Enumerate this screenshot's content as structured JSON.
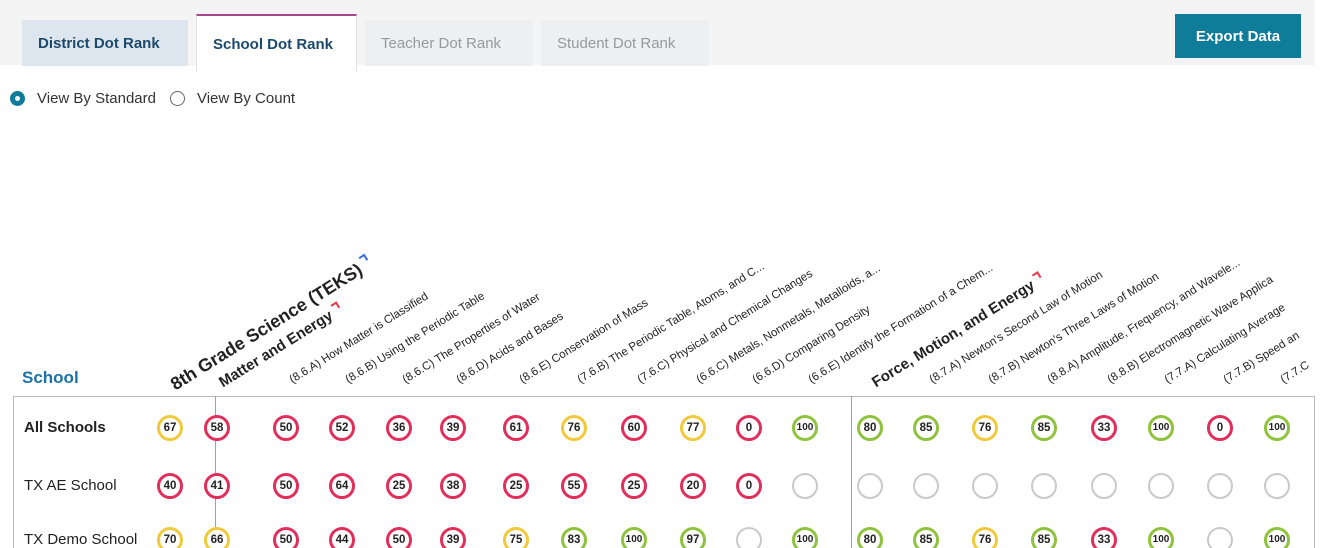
{
  "tabs": {
    "district": "District Dot Rank",
    "school": "School Dot Rank",
    "teacher": "Teacher Dot Rank",
    "student": "Student Dot Rank"
  },
  "export_label": "Export Data",
  "view_options": {
    "standard": "View By Standard",
    "count": "View By Count",
    "selected": "standard"
  },
  "table": {
    "row_header": "School",
    "top_label": "8th Grade Science (TEKS)",
    "columns": [
      {
        "label": "8th Grade Science (TEKS)",
        "kind": "top",
        "flag": "blue"
      },
      {
        "label": "Matter and Energy",
        "kind": "group",
        "flag": "red"
      },
      {
        "label": "(8.6.A) How Matter is Classified",
        "kind": "standard"
      },
      {
        "label": "(8.6.B) Using the Periodic Table",
        "kind": "standard"
      },
      {
        "label": "(8.6.C) The Properties of Water",
        "kind": "standard"
      },
      {
        "label": "(8.6.D) Acids and Bases",
        "kind": "standard"
      },
      {
        "label": "(8.6.E) Conservation of Mass",
        "kind": "standard"
      },
      {
        "label": "(7.6.B) The Periodic Table, Atoms, and C...",
        "kind": "standard"
      },
      {
        "label": "(7.6.C) Physical and Chemical Changes",
        "kind": "standard"
      },
      {
        "label": "(6.6.C) Metals, Nonmetals, Metalloids, a...",
        "kind": "standard"
      },
      {
        "label": "(6.6.D) Comparing Density",
        "kind": "standard"
      },
      {
        "label": "(6.6.E) Identify the Formation of a Chem...",
        "kind": "standard"
      },
      {
        "label": "Force, Motion, and Energy",
        "kind": "group",
        "flag": "red"
      },
      {
        "label": "(8.7.A) Newton's Second Law of Motion",
        "kind": "standard"
      },
      {
        "label": "(8.7.B) Newton's Three Laws of Motion",
        "kind": "standard"
      },
      {
        "label": "(8.8.A) Amplitude, Frequency, and Wavele...",
        "kind": "standard"
      },
      {
        "label": "(8.8.B) Electromagnetic Wave Applica",
        "kind": "standard"
      },
      {
        "label": "(7.7.A) Calculating Average",
        "kind": "standard"
      },
      {
        "label": "(7.7.B) Speed an",
        "kind": "standard"
      },
      {
        "label": "(7.7.C",
        "kind": "standard"
      }
    ],
    "rows": [
      {
        "name": "All Schools",
        "bold": true,
        "values": [
          "67",
          "58",
          "50",
          "52",
          "36",
          "39",
          "61",
          "76",
          "60",
          "77",
          "0",
          "100",
          "80",
          "85",
          "76",
          "85",
          "33",
          "100",
          "0",
          "100"
        ],
        "colors": [
          "yellow",
          "red",
          "red",
          "red",
          "red",
          "red",
          "red",
          "yellow",
          "red",
          "yellow",
          "red",
          "green",
          "green",
          "green",
          "yellow",
          "green",
          "red",
          "green",
          "red",
          "green"
        ]
      },
      {
        "name": "TX AE School",
        "bold": false,
        "values": [
          "40",
          "41",
          "50",
          "64",
          "25",
          "38",
          "25",
          "55",
          "25",
          "20",
          "0",
          "",
          "",
          "",
          "",
          "",
          "",
          "",
          "",
          ""
        ],
        "colors": [
          "red",
          "red",
          "red",
          "red",
          "red",
          "red",
          "red",
          "red",
          "red",
          "red",
          "red",
          "empty",
          "empty",
          "empty",
          "empty",
          "empty",
          "empty",
          "empty",
          "empty",
          "empty"
        ]
      },
      {
        "name": "TX Demo School",
        "bold": false,
        "values": [
          "70",
          "66",
          "50",
          "44",
          "50",
          "39",
          "75",
          "83",
          "100",
          "97",
          "",
          "100",
          "80",
          "85",
          "76",
          "85",
          "33",
          "100",
          "",
          "100"
        ],
        "colors": [
          "yellow",
          "yellow",
          "red",
          "red",
          "red",
          "red",
          "yellow",
          "green",
          "green",
          "green",
          "empty",
          "green",
          "green",
          "green",
          "yellow",
          "green",
          "red",
          "green",
          "empty",
          "green"
        ]
      }
    ]
  }
}
